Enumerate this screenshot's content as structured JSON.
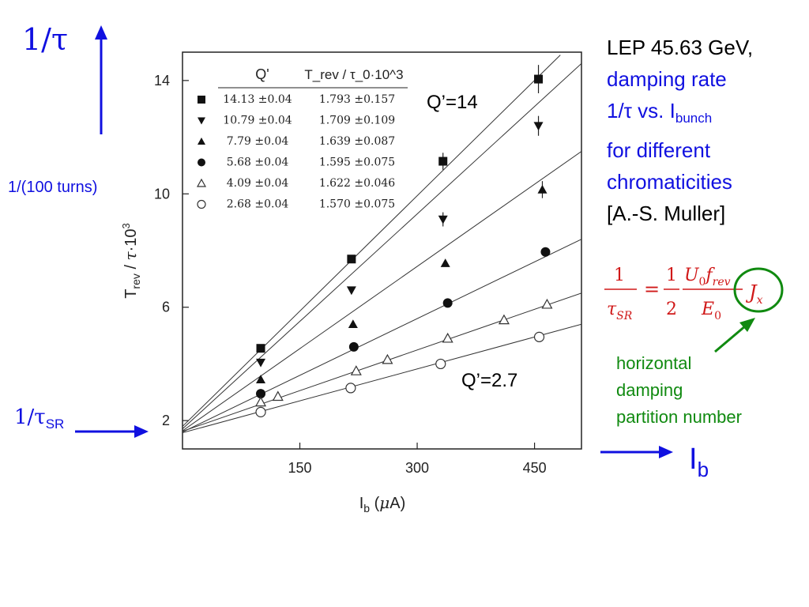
{
  "annotations": {
    "inv_tau": "1/τ",
    "turns": "1/(100 turns)",
    "inv_tau_sr_main": "1/τ",
    "inv_tau_sr_sub": "SR",
    "ib_main": "I",
    "ib_sub": "b",
    "q_high": "Q’=14",
    "q_low": "Q’=2.7"
  },
  "title_block": {
    "line1": "LEP 45.63 GeV,",
    "line2": "damping rate",
    "line3_a": "1/τ vs. I",
    "line3_sub": "bunch",
    "line4": "for different",
    "line5": "chromaticities",
    "line6": "[A.-S. Muller]"
  },
  "partition": {
    "line1": "horizontal",
    "line2": "damping",
    "line3": "partition number"
  },
  "formula": {
    "lhs_num": "1",
    "lhs_den": "τSR",
    "eq": "=",
    "half_num": "1",
    "half_den": "2",
    "frac_num": "U0frev",
    "frac_den": "E0",
    "jx": "Jx"
  },
  "colors": {
    "accent_blue": "#1010e0",
    "green": "#108a10",
    "red": "#d01818"
  },
  "chart_data": {
    "type": "scatter",
    "xlabel": "I_b (μA)",
    "ylabel": "T_rev / τ·10^3",
    "xlim": [
      0,
      510
    ],
    "ylim": [
      1,
      15
    ],
    "x_ticks": [
      150,
      300,
      450
    ],
    "y_ticks": [
      2,
      6,
      10,
      14
    ],
    "grid": false,
    "legend": {
      "placement": "top-left",
      "header_q": "Q'",
      "header_t": "T_rev / τ_0·10^3",
      "rows": [
        {
          "marker": "square-filled",
          "q": "14.13 ±0.04",
          "t": "1.793 ±0.157"
        },
        {
          "marker": "triangle-down-filled",
          "q": "10.79 ±0.04",
          "t": "1.709 ±0.109"
        },
        {
          "marker": "triangle-up-filled",
          "q": "7.79 ±0.04",
          "t": "1.639 ±0.087"
        },
        {
          "marker": "circle-filled",
          "q": "5.68 ±0.04",
          "t": "1.595 ±0.075"
        },
        {
          "marker": "triangle-up-open",
          "q": "4.09 ±0.04",
          "t": "1.622 ±0.046"
        },
        {
          "marker": "circle-open",
          "q": "2.68 ±0.04",
          "t": "1.570 ±0.075"
        }
      ]
    },
    "series": [
      {
        "marker": "square-filled",
        "intercept": 1.793,
        "line_end": [
          483,
          14.9
        ],
        "x": [
          100,
          216,
          333,
          455
        ],
        "y": [
          4.55,
          7.7,
          11.15,
          14.05
        ],
        "err": [
          0,
          0,
          0.3,
          0.5
        ]
      },
      {
        "marker": "triangle-down-filled",
        "intercept": 1.709,
        "line_end": [
          510,
          14.6
        ],
        "x": [
          100,
          216,
          333,
          455
        ],
        "y": [
          4.05,
          6.6,
          9.1,
          12.4
        ],
        "err": [
          0,
          0,
          0.25,
          0.35
        ]
      },
      {
        "marker": "triangle-up-filled",
        "intercept": 1.639,
        "line_end": [
          510,
          11.5
        ],
        "x": [
          100,
          218,
          336,
          460
        ],
        "y": [
          3.45,
          5.4,
          7.55,
          10.15
        ],
        "err": [
          0,
          0,
          0,
          0.3
        ]
      },
      {
        "marker": "circle-filled",
        "intercept": 1.595,
        "line_end": [
          510,
          8.4
        ],
        "x": [
          100,
          219,
          339,
          464
        ],
        "y": [
          2.95,
          4.6,
          6.15,
          7.95
        ],
        "err": [
          0,
          0,
          0,
          0
        ]
      },
      {
        "marker": "triangle-up-open",
        "intercept": 1.622,
        "line_end": [
          510,
          6.5
        ],
        "x": [
          100,
          122,
          222,
          262,
          339,
          411,
          466
        ],
        "y": [
          2.65,
          2.85,
          3.75,
          4.15,
          4.9,
          5.55,
          6.1
        ],
        "err": [
          0,
          0,
          0,
          0,
          0,
          0,
          0
        ]
      },
      {
        "marker": "circle-open",
        "intercept": 1.57,
        "line_end": [
          510,
          5.4
        ],
        "x": [
          100,
          215,
          330,
          456
        ],
        "y": [
          2.3,
          3.15,
          4.0,
          4.95
        ],
        "err": [
          0,
          0,
          0,
          0
        ]
      }
    ]
  }
}
